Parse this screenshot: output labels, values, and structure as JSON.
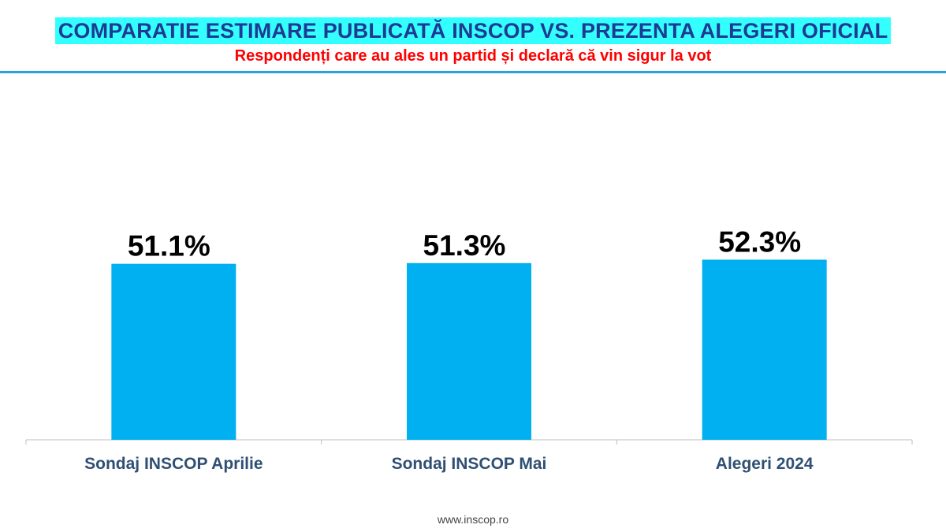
{
  "header": {
    "title": "COMPARATIE ESTIMARE PUBLICATĂ INSCOP VS. PREZENTA ALEGERI OFICIAL",
    "subtitle": "Respondenți care au ales un partid și declară că vin sigur la vot"
  },
  "footer": {
    "url": "www.inscop.ro"
  },
  "colors": {
    "bar": "#00b0f0",
    "title_bg": "#33ffff",
    "title_text": "#1f3a93",
    "subtitle_text": "#ff0000",
    "axis_label": "#2f4f73"
  },
  "chart_data": {
    "type": "bar",
    "categories": [
      "Sondaj INSCOP Aprilie",
      "Sondaj INSCOP Mai",
      "Alegeri 2024"
    ],
    "values": [
      51.1,
      51.3,
      52.3
    ],
    "value_labels": [
      "51.1%",
      "51.3%",
      "52.3%"
    ],
    "ylim": [
      0,
      100
    ],
    "grid": false,
    "legend": "none"
  }
}
